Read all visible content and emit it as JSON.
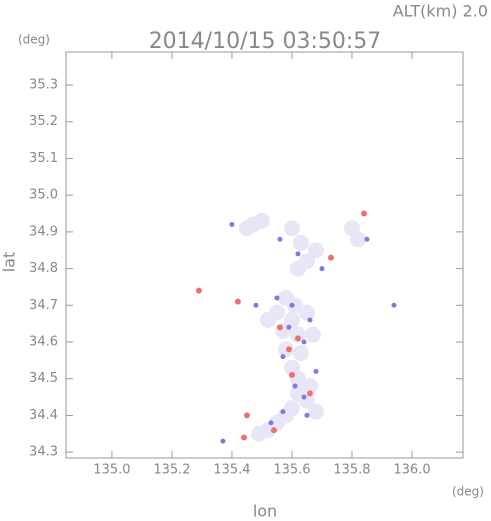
{
  "chart_data": {
    "type": "scatter",
    "title": "2014/10/15 03:50:57",
    "subtitle": "ALT(km)  2.0",
    "x_label": "lon",
    "y_label": "lat",
    "x_unit": "(deg)",
    "y_unit": "(deg)",
    "xlim": [
      134.847,
      136.17
    ],
    "ylim": [
      34.284,
      35.39
    ],
    "xticks": [
      {
        "value": 135.0,
        "label": "135.0"
      },
      135.2,
      135.4,
      135.6,
      135.8,
      {
        "value": 136.0,
        "label": "136.0"
      }
    ],
    "yticks": [
      34.3,
      34.4,
      34.5,
      34.6,
      34.7,
      34.8,
      34.9,
      {
        "value": 35.0,
        "label": "35.0"
      },
      35.1,
      35.2,
      35.3
    ],
    "series": [
      {
        "color": "#e6e6f6",
        "x": [
          135.47,
          135.5,
          135.45,
          135.62,
          135.65,
          135.68,
          135.63,
          135.6,
          135.8,
          135.82,
          135.58,
          135.61,
          135.55,
          135.6,
          135.65,
          135.57,
          135.62,
          135.58,
          135.63,
          135.6,
          135.62,
          135.66,
          135.62,
          135.65,
          135.6,
          135.58,
          135.55,
          135.52,
          135.49,
          135.68,
          135.52,
          135.67
        ],
        "y": [
          34.92,
          34.93,
          34.91,
          34.8,
          34.82,
          34.85,
          34.87,
          34.91,
          34.91,
          34.88,
          34.72,
          34.7,
          34.68,
          34.66,
          34.68,
          34.63,
          34.62,
          34.58,
          34.57,
          34.53,
          34.5,
          34.48,
          34.46,
          34.44,
          34.42,
          34.4,
          34.38,
          34.36,
          34.35,
          34.41,
          34.66,
          34.62
        ]
      },
      {
        "color": "#7a7ae8",
        "x": [
          135.4,
          135.56,
          135.62,
          135.7,
          135.94,
          135.48,
          135.55,
          135.59,
          135.64,
          135.57,
          135.68,
          135.61,
          135.64,
          135.57,
          135.65,
          135.53,
          135.37,
          135.6,
          135.66,
          135.85
        ],
        "y": [
          34.92,
          34.88,
          34.84,
          34.8,
          34.7,
          34.7,
          34.72,
          34.64,
          34.6,
          34.56,
          34.52,
          34.48,
          34.45,
          34.41,
          34.4,
          34.38,
          34.33,
          34.7,
          34.66,
          34.88
        ]
      },
      {
        "color": "#f07070",
        "x": [
          135.29,
          135.44,
          135.73,
          135.62,
          135.56,
          135.59,
          135.45,
          135.66,
          135.6,
          135.84,
          135.42,
          135.54
        ],
        "y": [
          34.74,
          34.34,
          34.83,
          34.61,
          34.64,
          34.58,
          34.4,
          34.46,
          34.51,
          34.95,
          34.71,
          34.36
        ]
      }
    ]
  }
}
